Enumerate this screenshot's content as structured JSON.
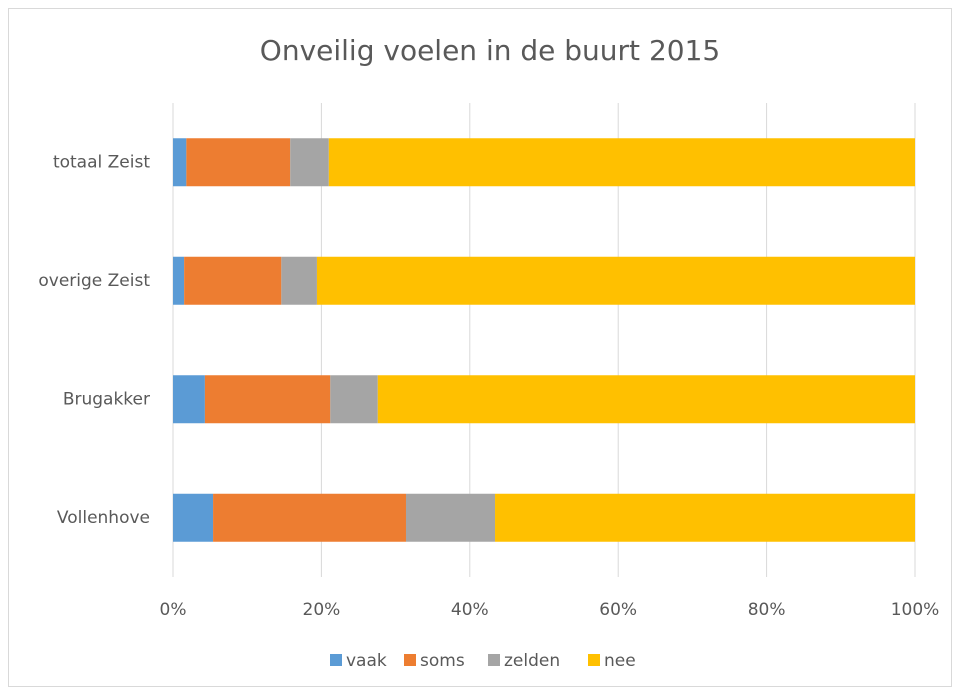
{
  "chart_data": {
    "type": "stacked-bar-horizontal",
    "title": "Onveilig voelen in de buurt 2015",
    "categories": [
      "totaal Zeist",
      "overige Zeist",
      "Brugakker",
      "Vollenhove"
    ],
    "series": [
      {
        "name": "vaak",
        "color": "#5b9bd5",
        "values": [
          1.8,
          1.5,
          4.3,
          5.4
        ]
      },
      {
        "name": "soms",
        "color": "#ed7d31",
        "values": [
          14.0,
          13.1,
          16.9,
          26.0
        ]
      },
      {
        "name": "zelden",
        "color": "#a5a5a5",
        "values": [
          5.2,
          4.8,
          6.4,
          12.0
        ]
      },
      {
        "name": "nee",
        "color": "#ffc000",
        "values": [
          79.0,
          80.6,
          72.4,
          56.6
        ]
      }
    ],
    "xlim": [
      0,
      100
    ],
    "xticks": [
      {
        "value": 0,
        "label": "0%"
      },
      {
        "value": 20,
        "label": "20%"
      },
      {
        "value": 40,
        "label": "40%"
      },
      {
        "value": 60,
        "label": "60%"
      },
      {
        "value": 80,
        "label": "80%"
      },
      {
        "value": 100,
        "label": "100%"
      }
    ],
    "grid": true,
    "legend": "bottom"
  }
}
